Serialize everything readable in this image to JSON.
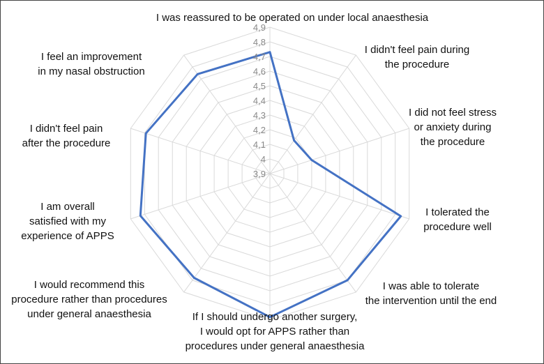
{
  "chart_data": {
    "type": "radar",
    "categories": [
      "I was reassured to be operated on under local anaesthesia",
      "I didn't feel pain during the procedure",
      "I did not feel stress or anxiety during the procedure",
      "I tolerated the procedure well",
      "I was able to tolerate the intervention until the end",
      "If I should undergo another surgery, I would opt for APPS rather than procedures under general anaesthesia",
      "I would recommend this procedure rather than procedures under general anaesthesia",
      "I am overall satisfied with my experience of APPS",
      "I didn't feel pain after the procedure",
      "I feel an improvement in my nasal obstruction"
    ],
    "category_lines": [
      [
        "I was reassured to be operated on under local anaesthesia"
      ],
      [
        "I didn't feel pain during",
        "the procedure"
      ],
      [
        "I did not feel stress",
        "or anxiety during",
        "the procedure"
      ],
      [
        "I tolerated the",
        "procedure well"
      ],
      [
        "I was able to tolerate",
        "the intervention until the end"
      ],
      [
        "If I should undergo another surgery,",
        "I would opt for APPS rather than",
        "procedures under general anaesthesia"
      ],
      [
        "I would recommend this",
        "procedure rather than procedures",
        "under general anaesthesia"
      ],
      [
        "I am overall",
        "satisfied with my",
        "experience of APPS"
      ],
      [
        "I didn't feel pain",
        "after the procedure"
      ],
      [
        "I feel an improvement",
        "in my nasal obstruction"
      ]
    ],
    "series": [
      {
        "values": [
          4.73,
          4.18,
          4.2,
          4.84,
          4.8,
          4.88,
          4.78,
          4.83,
          4.79,
          4.74
        ],
        "color": "#4472c4"
      }
    ],
    "rlim": [
      3.9,
      4.9
    ],
    "ticks": [
      "3,9",
      "4",
      "4,1",
      "4,2",
      "4,3",
      "4,4",
      "4,5",
      "4,6",
      "4,7",
      "4,8",
      "4,9"
    ],
    "tick_values": [
      3.9,
      4.0,
      4.1,
      4.2,
      4.3,
      4.4,
      4.5,
      4.6,
      4.7,
      4.8,
      4.9
    ],
    "grid": true,
    "legend": "none"
  }
}
